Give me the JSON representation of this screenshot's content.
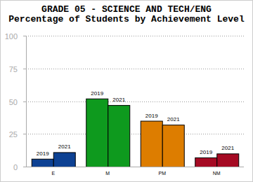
{
  "chart_data": {
    "type": "bar",
    "title": "GRADE 05 - SCIENCE AND TECH/ENG",
    "subtitle": "Percentage of Students by Achievement Level",
    "categories": [
      "E",
      "M",
      "PM",
      "NM"
    ],
    "series": [
      {
        "name": "2019",
        "colors": [
          "#0d4193",
          "#0e9a1e",
          "#dd7d00",
          "#a50a23"
        ],
        "values": [
          6,
          52,
          35,
          7
        ]
      },
      {
        "name": "2021",
        "colors": [
          "#0d4193",
          "#0e9a1e",
          "#dd7d00",
          "#a50a23"
        ],
        "values": [
          11,
          47,
          32,
          10
        ]
      }
    ],
    "ylim": [
      0,
      100
    ],
    "yticks": [
      0,
      25,
      50,
      75,
      100
    ],
    "grid": true
  }
}
